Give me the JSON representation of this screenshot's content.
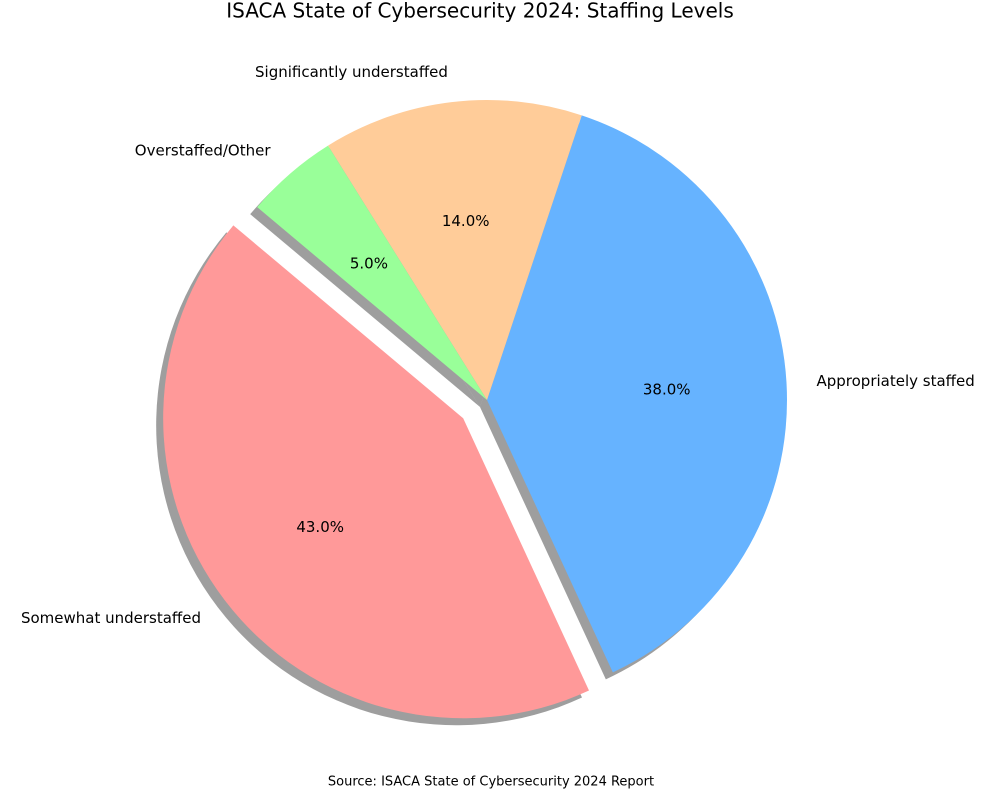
{
  "chart_data": {
    "type": "pie",
    "title": "ISACA State of Cybersecurity 2024: Staffing Levels",
    "categories": [
      "Somewhat understaffed",
      "Appropriately staffed",
      "Significantly understaffed",
      "Overstaffed/Other"
    ],
    "values": [
      43,
      38,
      14,
      5
    ],
    "value_labels": [
      "43.0%",
      "38.0%",
      "14.0%",
      "5.0%"
    ],
    "colors": [
      "#ff9999",
      "#66b3ff",
      "#ffcc99",
      "#99ff99"
    ],
    "explode": [
      0.1,
      0,
      0,
      0
    ],
    "startangle": 140,
    "shadow": true,
    "source": "Source: ISACA State of Cybersecurity 2024 Report"
  }
}
